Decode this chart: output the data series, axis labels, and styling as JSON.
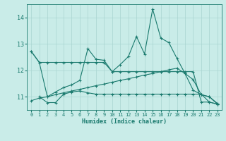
{
  "xlabel": "Humidex (Indice chaleur)",
  "background_color": "#c9ece8",
  "grid_color": "#a8d5d0",
  "line_color": "#1a7a6e",
  "xlim": [
    -0.5,
    23.5
  ],
  "ylim": [
    10.5,
    14.5
  ],
  "yticks": [
    11,
    12,
    13,
    14
  ],
  "xticks": [
    0,
    1,
    2,
    3,
    4,
    5,
    6,
    7,
    8,
    9,
    10,
    11,
    12,
    13,
    14,
    15,
    16,
    17,
    18,
    19,
    20,
    21,
    22,
    23
  ],
  "line1_x": [
    0,
    1,
    2,
    3,
    4,
    5,
    6,
    7,
    8,
    9,
    10,
    11,
    12,
    13,
    14,
    15,
    16,
    17,
    18,
    19,
    20,
    21,
    22,
    23
  ],
  "line1_y": [
    12.72,
    12.3,
    12.3,
    12.3,
    12.3,
    12.3,
    12.3,
    12.3,
    12.3,
    12.3,
    11.95,
    11.95,
    11.95,
    11.95,
    11.95,
    11.95,
    11.95,
    11.95,
    11.95,
    11.95,
    11.95,
    10.8,
    10.8,
    10.72
  ],
  "line2_x": [
    1,
    2,
    3,
    4,
    5,
    6,
    7,
    8,
    9,
    10,
    11,
    12,
    13,
    14,
    15,
    16,
    17,
    18,
    19,
    20,
    21,
    22,
    23
  ],
  "line2_y": [
    11.0,
    10.78,
    10.78,
    11.1,
    11.18,
    11.22,
    11.15,
    11.1,
    11.1,
    11.1,
    11.1,
    11.1,
    11.1,
    11.1,
    11.1,
    11.1,
    11.1,
    11.1,
    11.1,
    11.1,
    11.1,
    10.8,
    10.72
  ],
  "line3_x": [
    0,
    1,
    2,
    3,
    4,
    5,
    6,
    7,
    8,
    9,
    10,
    11,
    12,
    13,
    14,
    15,
    16,
    17,
    18,
    19,
    20,
    21,
    22,
    23
  ],
  "line3_y": [
    10.85,
    10.95,
    11.0,
    11.08,
    11.15,
    11.22,
    11.28,
    11.35,
    11.42,
    11.48,
    11.55,
    11.62,
    11.68,
    11.75,
    11.82,
    11.88,
    11.95,
    12.02,
    12.08,
    11.88,
    11.65,
    11.08,
    11.0,
    10.75
  ],
  "line4_x": [
    0,
    1,
    2,
    3,
    4,
    5,
    6,
    7,
    8,
    9,
    10,
    11,
    12,
    13,
    14,
    15,
    16,
    17,
    18,
    19,
    20,
    21,
    22,
    23
  ],
  "line4_y": [
    12.72,
    12.3,
    11.0,
    11.18,
    11.35,
    11.45,
    11.62,
    12.82,
    12.42,
    12.38,
    11.95,
    12.22,
    12.52,
    13.28,
    12.62,
    14.32,
    13.22,
    13.05,
    12.45,
    11.88,
    11.25,
    11.08,
    11.0,
    10.72
  ]
}
